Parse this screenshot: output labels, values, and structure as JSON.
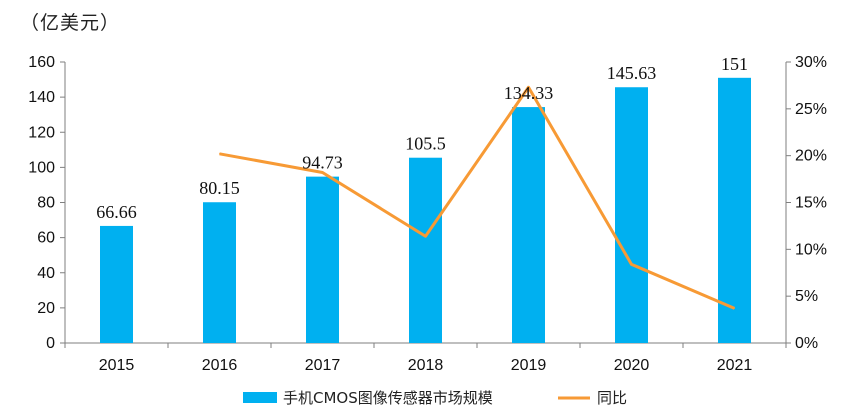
{
  "unit": "（亿美元）",
  "chart_data": {
    "type": "bar+line",
    "categories": [
      "2015",
      "2016",
      "2017",
      "2018",
      "2019",
      "2020",
      "2021"
    ],
    "series": [
      {
        "name": "手机CMOS图像传感器市场规模",
        "type": "bar",
        "axis": "left",
        "values": [
          66.66,
          80.15,
          94.73,
          105.5,
          134.33,
          145.63,
          151
        ],
        "labels": [
          "66.66",
          "80.15",
          "94.73",
          "105.5",
          "134.33",
          "145.63",
          "151"
        ],
        "color": "#00B0F0"
      },
      {
        "name": "同比",
        "type": "line",
        "axis": "right",
        "values": [
          null,
          0.202,
          0.182,
          0.114,
          0.273,
          0.084,
          0.037
        ],
        "color": "#F79A35"
      }
    ],
    "y_left": {
      "min": 0,
      "max": 160,
      "ticks": [
        "0",
        "20",
        "40",
        "60",
        "80",
        "100",
        "120",
        "140",
        "160"
      ]
    },
    "y_right": {
      "min": 0,
      "max": 0.3,
      "ticks": [
        "0%",
        "5%",
        "10%",
        "15%",
        "20%",
        "25%",
        "30%"
      ]
    },
    "grid": false,
    "legend_position": "bottom"
  }
}
